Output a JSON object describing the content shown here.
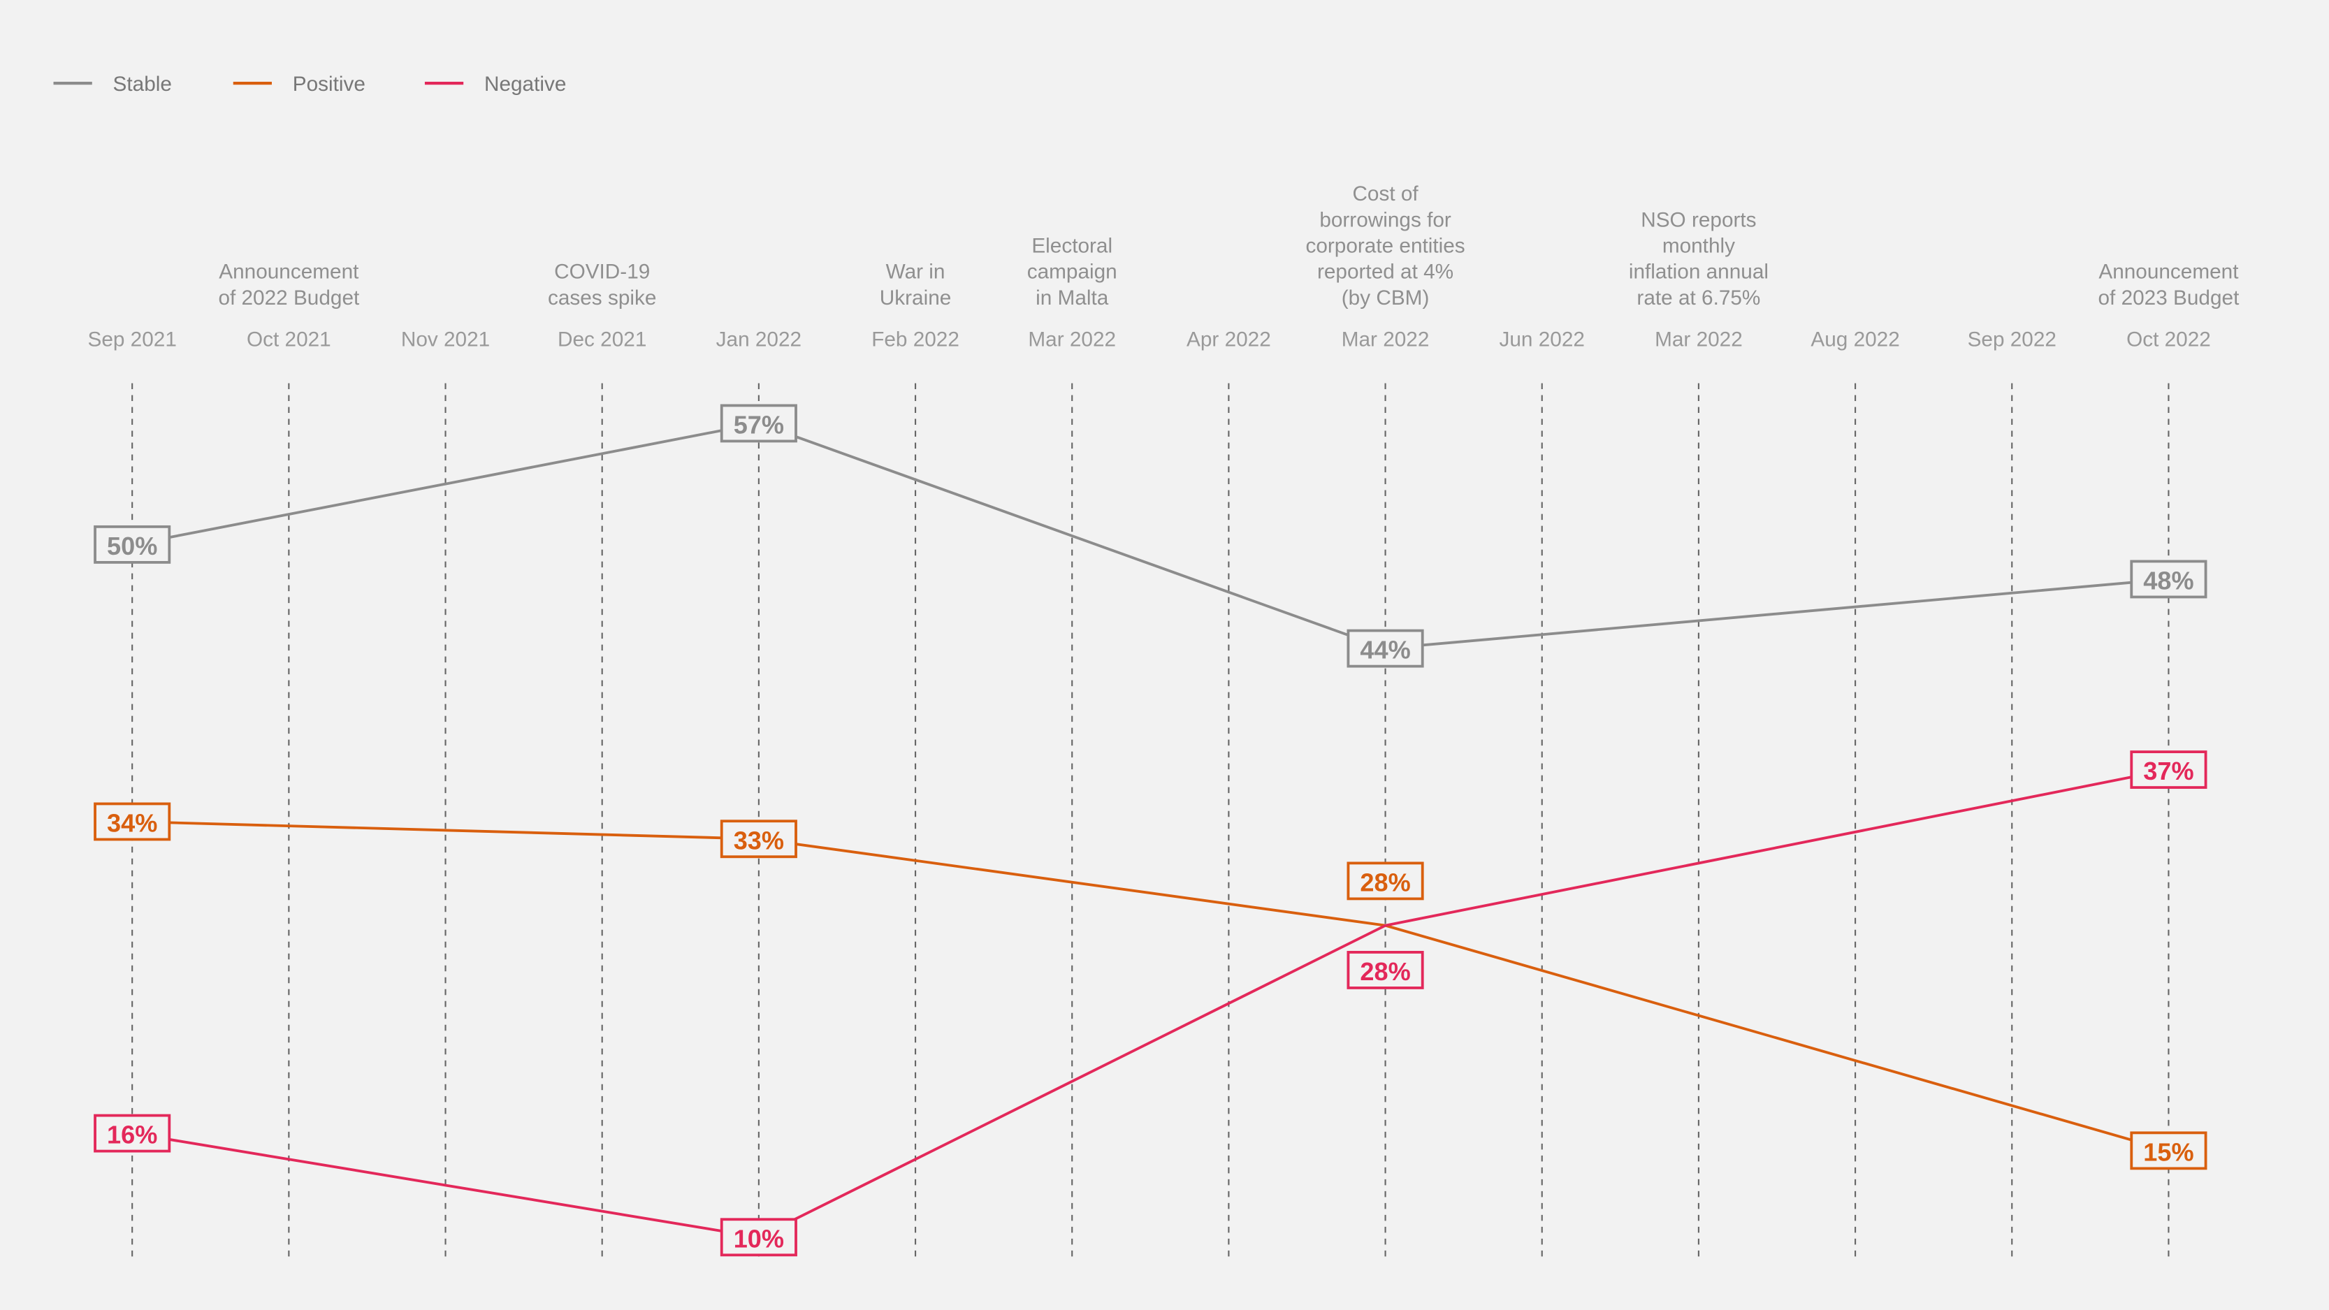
{
  "chart_data": {
    "type": "line",
    "x": [
      "Sep 2021",
      "Oct 2021",
      "Nov 2021",
      "Dec 2021",
      "Jan 2022",
      "Feb 2022",
      "Mar 2022",
      "Apr 2022",
      "Mar 2022",
      "Jun 2022",
      "Mar 2022",
      "Aug 2022",
      "Sep 2022",
      "Oct 2022"
    ],
    "annotations": [
      {
        "x_index": 1,
        "lines": [
          "Announcement",
          "of 2022 Budget"
        ]
      },
      {
        "x_index": 3,
        "lines": [
          "COVID-19",
          "cases spike"
        ]
      },
      {
        "x_index": 5,
        "lines": [
          "War in",
          "Ukraine"
        ]
      },
      {
        "x_index": 6,
        "lines": [
          "Electoral",
          "campaign",
          "in Malta"
        ]
      },
      {
        "x_index": 8,
        "lines": [
          "Cost of",
          "borrowings for",
          "corporate entities",
          "reported at 4%",
          "(by CBM)"
        ]
      },
      {
        "x_index": 10,
        "lines": [
          "NSO reports",
          "monthly",
          "inflation annual",
          "rate at 6.75%"
        ]
      },
      {
        "x_index": 13,
        "lines": [
          "Announcement",
          "of 2023 Budget"
        ]
      }
    ],
    "series": [
      {
        "name": "Stable",
        "color": "#8c8c8c",
        "points": [
          {
            "x_index": 0,
            "y": 50,
            "label": "50%"
          },
          {
            "x_index": 4,
            "y": 57,
            "label": "57%"
          },
          {
            "x_index": 8,
            "y": 44,
            "label": "44%"
          },
          {
            "x_index": 13,
            "y": 48,
            "label": "48%"
          }
        ]
      },
      {
        "name": "Positive",
        "color": "#d95f0e",
        "points": [
          {
            "x_index": 0,
            "y": 34,
            "label": "34%"
          },
          {
            "x_index": 4,
            "y": 33,
            "label": "33%"
          },
          {
            "x_index": 8,
            "y": 28,
            "label": "28%"
          },
          {
            "x_index": 13,
            "y": 15,
            "label": "15%"
          }
        ]
      },
      {
        "name": "Negative",
        "color": "#e3285a",
        "points": [
          {
            "x_index": 0,
            "y": 16,
            "label": "16%"
          },
          {
            "x_index": 4,
            "y": 10,
            "label": "10%"
          },
          {
            "x_index": 8,
            "y": 28,
            "label": "28%"
          },
          {
            "x_index": 13,
            "y": 37,
            "label": "37%"
          }
        ]
      }
    ],
    "legend_placement": "top-left",
    "grid": "vertical dashed lines",
    "xlabel": "",
    "ylabel": "",
    "title": ""
  }
}
